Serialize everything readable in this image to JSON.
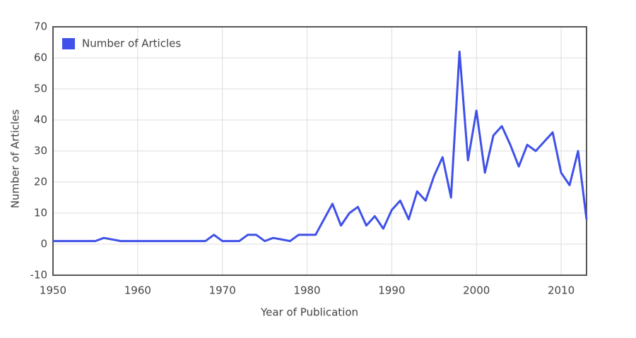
{
  "chart_data": {
    "type": "line",
    "x_label": "Year of Publication",
    "y_label": "Number of Articles",
    "x": [
      1950,
      1951,
      1952,
      1953,
      1954,
      1955,
      1956,
      1957,
      1958,
      1959,
      1960,
      1961,
      1962,
      1963,
      1964,
      1965,
      1966,
      1967,
      1968,
      1969,
      1970,
      1971,
      1972,
      1973,
      1974,
      1975,
      1976,
      1977,
      1978,
      1979,
      1980,
      1981,
      1982,
      1983,
      1984,
      1985,
      1986,
      1987,
      1988,
      1989,
      1990,
      1991,
      1992,
      1993,
      1994,
      1995,
      1996,
      1997,
      1998,
      1999,
      2000,
      2001,
      2002,
      2003,
      2004,
      2005,
      2006,
      2007,
      2008,
      2009,
      2010,
      2011,
      2012,
      2013
    ],
    "series": [
      {
        "name": "Number of Articles",
        "color": "#3f51e8",
        "values": [
          1,
          1,
          1,
          1,
          1,
          1,
          2,
          1.5,
          1,
          1,
          1,
          1,
          1,
          1,
          1,
          1,
          1,
          1,
          1,
          3,
          1,
          1,
          1,
          3,
          3,
          1,
          2,
          1.5,
          1,
          3,
          3,
          3,
          8,
          13,
          6,
          10,
          12,
          6,
          9,
          5,
          11,
          14,
          8,
          17,
          14,
          22,
          28,
          15,
          62,
          27,
          43,
          23,
          35,
          38,
          32,
          25,
          32,
          30,
          33,
          36,
          23,
          19,
          30,
          8
        ]
      }
    ],
    "xlim": [
      1950,
      2013
    ],
    "xticks": [
      1950,
      1960,
      1970,
      1980,
      1990,
      2000,
      2010
    ],
    "ylim": [
      -10,
      70
    ],
    "yticks": [
      -10,
      0,
      10,
      20,
      30,
      40,
      50,
      60,
      70
    ],
    "grid": true,
    "legend": "top-left"
  }
}
